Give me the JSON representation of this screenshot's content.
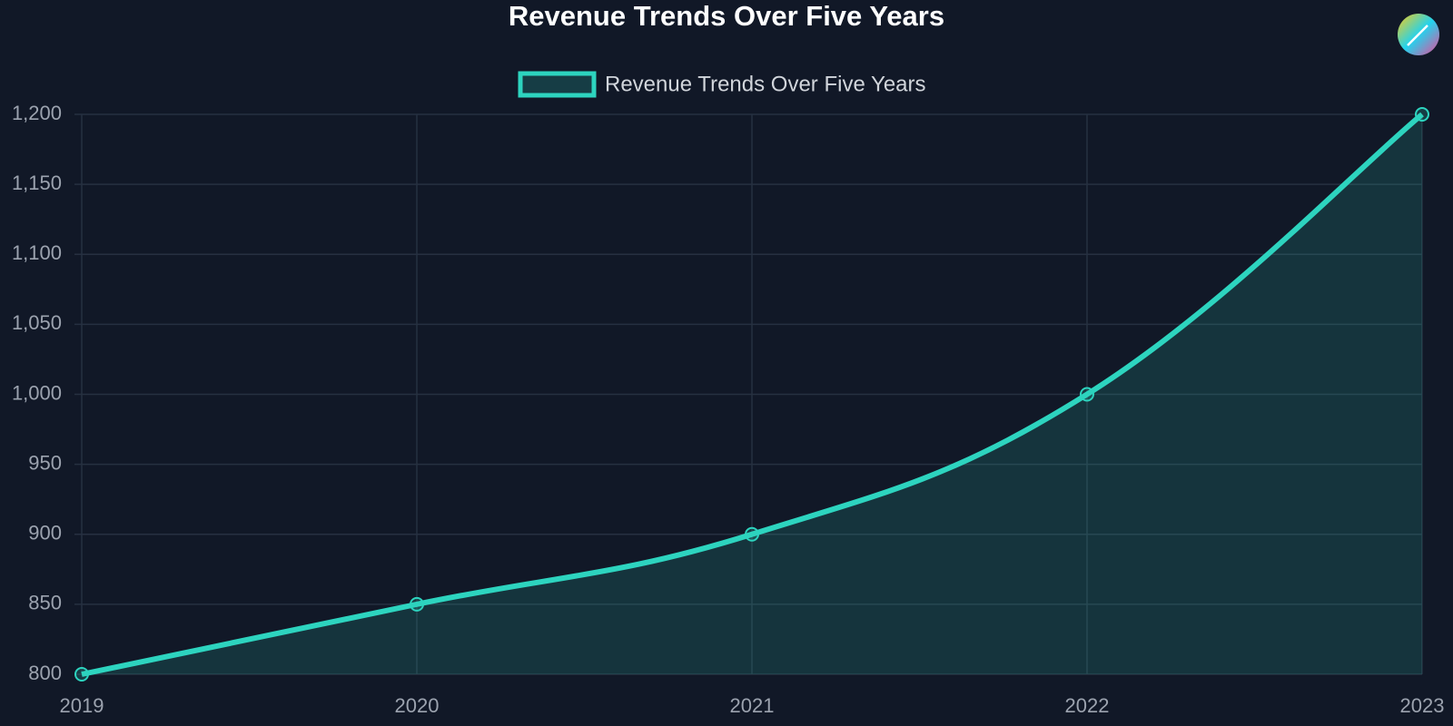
{
  "chart_data": {
    "type": "line",
    "title": "Revenue Trends Over Five Years",
    "categories": [
      "2019",
      "2020",
      "2021",
      "2022",
      "2023"
    ],
    "series": [
      {
        "name": "Revenue Trends Over Five Years",
        "color": "#2dd4bf",
        "values": [
          800,
          850,
          900,
          1000,
          1200
        ]
      }
    ],
    "area": true,
    "ylim": [
      800,
      1200
    ],
    "yticks": [
      800,
      850,
      900,
      950,
      {
        "value": 1000,
        "label": "1,000"
      },
      {
        "value": 1050,
        "label": "1,050"
      },
      {
        "value": 1100,
        "label": "1,100"
      },
      {
        "value": 1150,
        "label": "1,150"
      },
      {
        "value": 1200,
        "label": "1,200"
      }
    ],
    "grid": true,
    "legend": "top"
  }
}
